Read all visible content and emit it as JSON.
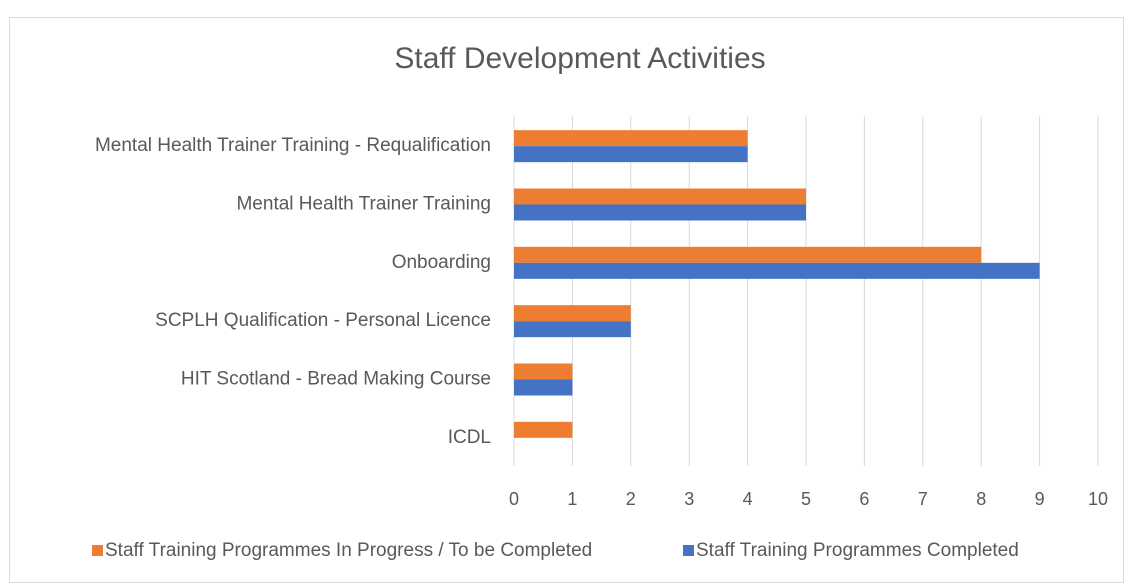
{
  "chart_data": {
    "type": "bar",
    "orientation": "horizontal",
    "title": "Staff Development Activities",
    "categories": [
      "Mental Health Trainer Training - Requalification",
      "Mental Health Trainer Training",
      "Onboarding",
      "SCPLH Qualification - Personal Licence",
      "HIT Scotland - Bread Making Course",
      "ICDL"
    ],
    "series": [
      {
        "name": "Staff Training Programmes In Progress / To be Completed",
        "color": "#ed7d31",
        "values": [
          4,
          5,
          8,
          2,
          1,
          1
        ]
      },
      {
        "name": "Staff Training Programmes Completed",
        "color": "#4472c4",
        "values": [
          4,
          5,
          9,
          2,
          1,
          0
        ]
      }
    ],
    "xlim": [
      0,
      10
    ],
    "xticks": [
      0,
      1,
      2,
      3,
      4,
      5,
      6,
      7,
      8,
      9,
      10
    ],
    "grid": true,
    "legend": "bottom"
  }
}
